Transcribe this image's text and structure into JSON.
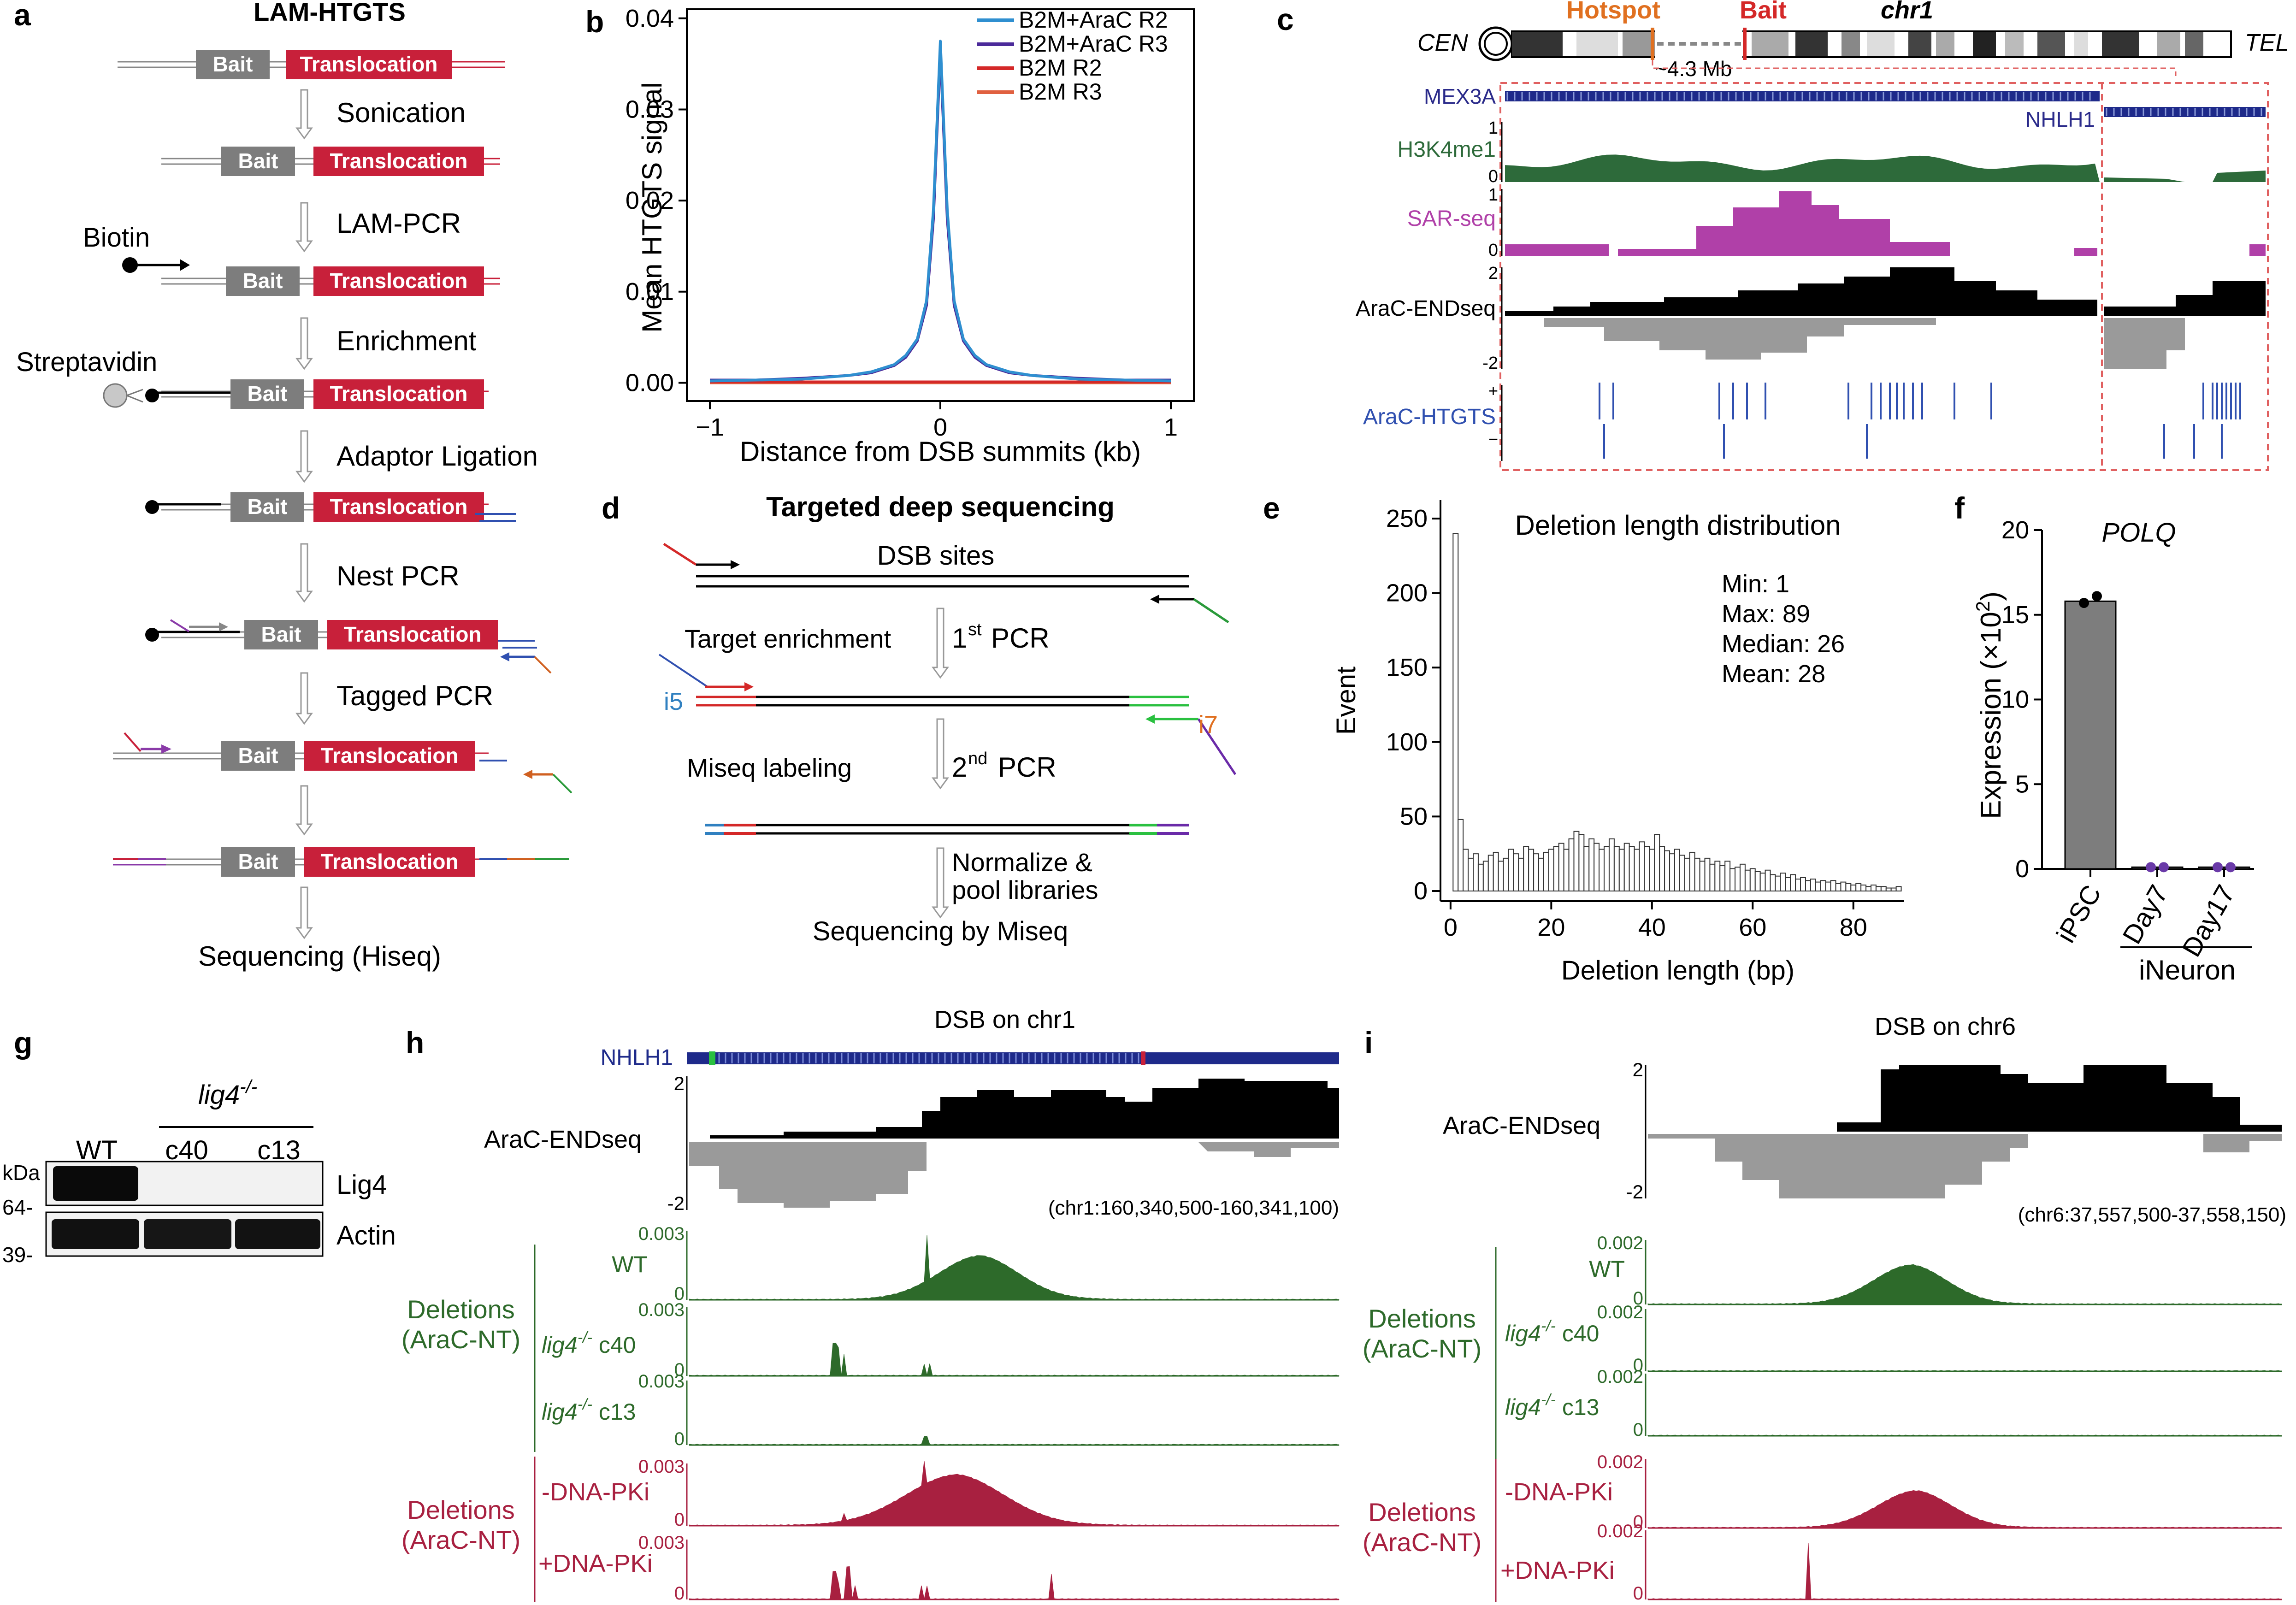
{
  "panel_a": {
    "letter": "a",
    "title": "LAM-HTGTS",
    "bait_label": "Bait",
    "translocation_label": "Translocation",
    "biotin_label": "Biotin",
    "streptavidin_label": "Streptavidin",
    "steps": [
      "Sonication",
      "LAM-PCR",
      "Enrichment",
      "Adaptor Ligation",
      "Nest PCR",
      "Tagged PCR"
    ],
    "final_step": "Sequencing (Hiseq)"
  },
  "panel_b": {
    "letter": "b",
    "legend": [
      "B2M+AraC R2",
      "B2M+AraC R3",
      "B2M R2",
      "B2M R3"
    ],
    "colors": [
      "#2f8fd0",
      "#4b2a9a",
      "#d42828",
      "#e06040"
    ],
    "ylabel": "Mean HTGTS signal",
    "xlabel": "Distance from DSB summits (kb)",
    "yticks": [
      "0.00",
      "0.01",
      "0.02",
      "0.03",
      "0.04"
    ],
    "xticks": [
      "−1",
      "0",
      "1"
    ]
  },
  "panel_c": {
    "letter": "c",
    "cen": "CEN",
    "tel": "TEL",
    "hotspot": "Hotspot",
    "bait": "Bait",
    "chrom": "chr1",
    "distance": "~4.3 Mb",
    "gene1": "MEX3A",
    "gene2": "NHLH1",
    "tracks": [
      "H3K4me1",
      "SAR-seq",
      "AraC-ENDseq",
      "AraC-HTGTS"
    ],
    "track_colors": [
      "#2d6a3a",
      "#b040a8",
      "#000000",
      "#3050b0"
    ],
    "scale_h3": [
      "1",
      "0"
    ],
    "scale_sar": [
      "1",
      "0"
    ],
    "scale_end": [
      "2",
      "-2"
    ],
    "strand": [
      "+",
      "−"
    ]
  },
  "panel_d": {
    "letter": "d",
    "title": "Targeted deep sequencing",
    "dsb_sites": "DSB sites",
    "target_enrichment": "Target enrichment",
    "first_pcr": "1",
    "first_pcr_sup": "st",
    "pcr_word": "PCR",
    "i5": "i5",
    "i7": "i7",
    "miseq_labeling": "Miseq labeling",
    "second_pcr": "2",
    "second_pcr_sup": "nd",
    "normalize1": "Normalize &",
    "normalize2": "pool libraries",
    "sequencing": "Sequencing by Miseq"
  },
  "panel_e": {
    "letter": "e",
    "title": "Deletion length distribution",
    "stats": [
      "Min: 1",
      "Max: 89",
      "Median: 26",
      "Mean: 28"
    ],
    "xlabel": "Deletion length (bp)",
    "ylabel": "Event",
    "yticks": [
      "0",
      "50",
      "100",
      "150",
      "200",
      "250"
    ],
    "xticks": [
      "0",
      "20",
      "40",
      "60",
      "80"
    ]
  },
  "panel_f": {
    "letter": "f",
    "title": "POLQ",
    "ylabel_main": "Expression (×10",
    "ylabel_sup": "2",
    "ylabel_end": ")",
    "yticks": [
      "0",
      "5",
      "10",
      "15",
      "20"
    ],
    "categories": [
      "iPSC",
      "Day7",
      "Day17"
    ],
    "group_label": "iNeuron"
  },
  "panel_g": {
    "letter": "g",
    "genotype": "lig4",
    "genotype_sup": "-/-",
    "lanes": [
      "WT",
      "c40",
      "c13"
    ],
    "kda": "kDa",
    "marker64": "64-",
    "marker39": "39-",
    "band1": "Lig4",
    "band2": "Actin"
  },
  "panel_h": {
    "letter": "h",
    "title": "DSB on chr1",
    "gene": "NHLH1",
    "endseq": "AraC-ENDseq",
    "scale_top": "2",
    "scale_bottom": "-2",
    "coords": "(chr1:160,340,500-160,341,100)",
    "del_label1": "Deletions",
    "del_label2": "(AraC-NT)",
    "scale_max": "0.003",
    "zero": "0",
    "wt": "WT",
    "lig4": "lig4",
    "lig4_sup": "-/-",
    "c40": "c40",
    "c13": "c13",
    "minus_dnapki": "-DNA-PKi",
    "plus_dnapki": "+DNA-PKi"
  },
  "panel_i": {
    "letter": "i",
    "title": "DSB on chr6",
    "endseq": "AraC-ENDseq",
    "scale_top": "2",
    "scale_bottom": "-2",
    "coords": "(chr6:37,557,500-37,558,150)",
    "del_label1": "Deletions",
    "del_label2": "(AraC-NT)",
    "scale_max": "0.002",
    "zero": "0",
    "wt": "WT",
    "lig4": "lig4",
    "lig4_sup": "-/-",
    "c40": "c40",
    "c13": "c13",
    "minus_dnapki": "-DNA-PKi",
    "plus_dnapki": "+DNA-PKi"
  },
  "chart_data": [
    {
      "panel": "b",
      "type": "line",
      "title": "",
      "xlabel": "Distance from DSB summits (kb)",
      "ylabel": "Mean HTGTS signal",
      "xlim": [
        -1.1,
        1.1
      ],
      "ylim": [
        -0.002,
        0.041
      ],
      "legend_position": "top-right",
      "x": [
        -1.0,
        -0.8,
        -0.6,
        -0.4,
        -0.3,
        -0.2,
        -0.15,
        -0.1,
        -0.06,
        -0.03,
        0.0,
        0.03,
        0.06,
        0.1,
        0.15,
        0.2,
        0.3,
        0.4,
        0.6,
        0.8,
        1.0
      ],
      "series": [
        {
          "name": "B2M+AraC R2",
          "color": "#2f8fd0",
          "values": [
            0.0002,
            0.0003,
            0.0004,
            0.0008,
            0.0012,
            0.002,
            0.003,
            0.0048,
            0.009,
            0.019,
            0.0375,
            0.019,
            0.009,
            0.0048,
            0.003,
            0.002,
            0.0012,
            0.0008,
            0.0004,
            0.0003,
            0.0002
          ]
        },
        {
          "name": "B2M+AraC R3",
          "color": "#4b2a9a",
          "values": [
            0.0003,
            0.0003,
            0.0005,
            0.0008,
            0.0011,
            0.0019,
            0.0028,
            0.0046,
            0.0085,
            0.018,
            0.0365,
            0.018,
            0.0085,
            0.0046,
            0.0028,
            0.0019,
            0.0011,
            0.0008,
            0.0005,
            0.0003,
            0.0003
          ]
        },
        {
          "name": "B2M R2",
          "color": "#d42828",
          "values": [
            0.0001,
            0.0001,
            0.0001,
            0.0001,
            0.0001,
            0.0001,
            0.0001,
            0.0001,
            0.0001,
            0.0001,
            0.0001,
            0.0001,
            0.0001,
            0.0001,
            0.0001,
            0.0001,
            0.0001,
            0.0001,
            0.0001,
            0.0001,
            0.0001
          ]
        },
        {
          "name": "B2M R3",
          "color": "#e06040",
          "values": [
            0.0,
            0.0,
            0.0,
            0.0,
            0.0,
            0.0,
            0.0,
            0.0,
            0.0,
            0.0,
            0.0,
            0.0,
            0.0,
            0.0,
            0.0,
            0.0,
            0.0,
            0.0,
            0.0,
            0.0,
            0.0
          ]
        }
      ]
    },
    {
      "panel": "e",
      "type": "bar",
      "title": "Deletion length distribution",
      "xlabel": "Deletion length (bp)",
      "ylabel": "Event",
      "xlim": [
        -2,
        90
      ],
      "ylim": [
        0,
        250
      ],
      "bin_start": 1,
      "values": [
        240,
        48,
        28,
        22,
        25,
        18,
        20,
        24,
        26,
        20,
        22,
        28,
        25,
        22,
        30,
        28,
        25,
        22,
        26,
        28,
        30,
        32,
        28,
        35,
        40,
        38,
        30,
        35,
        32,
        28,
        30,
        35,
        30,
        28,
        32,
        30,
        28,
        33,
        30,
        28,
        38,
        30,
        27,
        25,
        28,
        24,
        22,
        26,
        22,
        20,
        22,
        18,
        20,
        17,
        20,
        15,
        16,
        18,
        14,
        15,
        13,
        12,
        14,
        11,
        10,
        12,
        9,
        11,
        8,
        9,
        7,
        8,
        6,
        7,
        6,
        7,
        5,
        6,
        5,
        4,
        5,
        4,
        3,
        4,
        3,
        3,
        2,
        2,
        3
      ]
    },
    {
      "panel": "f",
      "type": "bar",
      "title": "POLQ",
      "categories": [
        "iPSC",
        "Day7",
        "Day17"
      ],
      "values": [
        15.8,
        0.1,
        0.1
      ],
      "points": [
        [
          15.7,
          16.1
        ],
        [
          0.1,
          0.1
        ],
        [
          0.1,
          0.1
        ]
      ],
      "point_colors": [
        "#000000",
        "#6a3aa8",
        "#6a3aa8"
      ],
      "ylabel": "Expression (×10^2)",
      "ylim": [
        0,
        20
      ]
    }
  ]
}
